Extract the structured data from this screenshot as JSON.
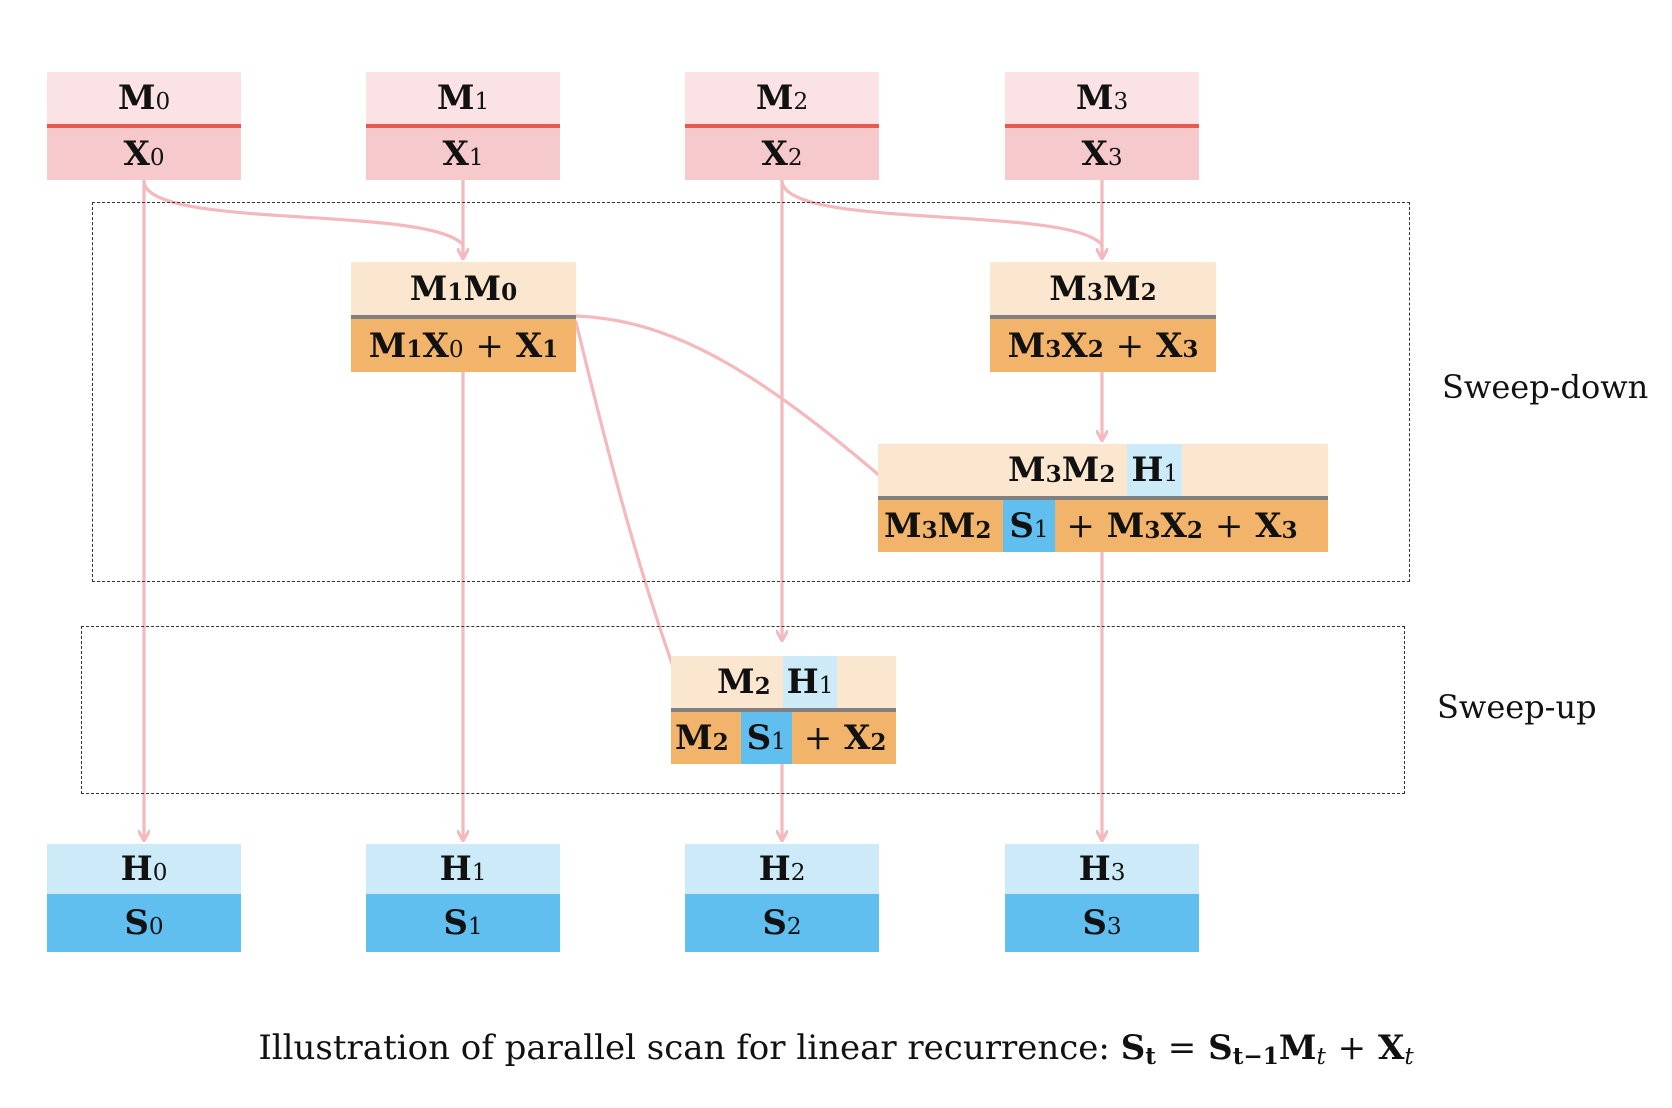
{
  "inputs": [
    {
      "m": "M",
      "m_sub": "0",
      "x": "X",
      "x_sub": "0"
    },
    {
      "m": "M",
      "m_sub": "1",
      "x": "X",
      "x_sub": "1"
    },
    {
      "m": "M",
      "m_sub": "2",
      "x": "X",
      "x_sub": "2"
    },
    {
      "m": "M",
      "m_sub": "3",
      "x": "X",
      "x_sub": "3"
    }
  ],
  "outputs": [
    {
      "h": "H",
      "h_sub": "0",
      "s": "S",
      "s_sub": "0"
    },
    {
      "h": "H",
      "h_sub": "1",
      "s": "S",
      "s_sub": "1"
    },
    {
      "h": "H",
      "h_sub": "2",
      "s": "S",
      "s_sub": "2"
    },
    {
      "h": "H",
      "h_sub": "3",
      "s": "S",
      "s_sub": "3"
    }
  ],
  "sweep_down_label": "Sweep-down",
  "sweep_up_label": "Sweep-up",
  "caption": {
    "text": "Illustration of parallel scan for linear recurrence:",
    "formula": {
      "s": "S",
      "s_sub": "t",
      "eq": "=",
      "s2": "S",
      "s2_sub": "t−1",
      "m": "M",
      "m_sub": "t",
      "plus": "+",
      "x": "X",
      "x_sub": "t"
    }
  },
  "colors": {
    "input_top": "#fbe3e5",
    "input_bottom": "#f6c9cd",
    "input_separator": "#e65a50",
    "mid_top": "#fbe7d0",
    "mid_bottom": "#f1b46a",
    "mid_separator": "#808080",
    "output_top": "#cdeaf8",
    "output_bottom": "#61bfef",
    "arrow": "#f4b9bd"
  }
}
